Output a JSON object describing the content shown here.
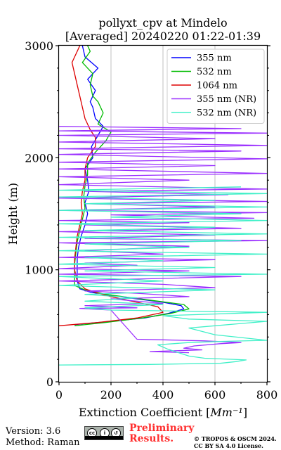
{
  "chart_data": {
    "type": "line",
    "title": [
      "pollyxt_cpv at Mindelo",
      "[Averaged] 20240220 01:22-01:39"
    ],
    "xlabel": "Extinction Coefficient [Mm⁻¹]",
    "ylabel": "Height (m)",
    "xlim": [
      0,
      800
    ],
    "ylim": [
      0,
      3000
    ],
    "xticks": [
      0,
      200,
      400,
      600,
      800
    ],
    "yticks": [
      0,
      1000,
      2000,
      3000
    ],
    "grid": "vertical",
    "legend": "top-right",
    "series": [
      {
        "name": "355 nm",
        "color": "#0000ff",
        "points": [
          [
            60,
            510
          ],
          [
            200,
            540
          ],
          [
            330,
            570
          ],
          [
            420,
            610
          ],
          [
            480,
            650
          ],
          [
            470,
            680
          ],
          [
            400,
            710
          ],
          [
            300,
            740
          ],
          [
            200,
            770
          ],
          [
            120,
            800
          ],
          [
            80,
            830
          ],
          [
            70,
            900
          ],
          [
            70,
            1000
          ],
          [
            70,
            1100
          ],
          [
            75,
            1200
          ],
          [
            85,
            1300
          ],
          [
            100,
            1400
          ],
          [
            110,
            1500
          ],
          [
            100,
            1600
          ],
          [
            115,
            1700
          ],
          [
            110,
            1800
          ],
          [
            100,
            1900
          ],
          [
            130,
            2000
          ],
          [
            125,
            2100
          ],
          [
            150,
            2200
          ],
          [
            170,
            2280
          ],
          [
            140,
            2350
          ],
          [
            130,
            2450
          ],
          [
            120,
            2500
          ],
          [
            140,
            2600
          ],
          [
            110,
            2700
          ],
          [
            150,
            2800
          ],
          [
            100,
            2900
          ],
          [
            90,
            3000
          ]
        ]
      },
      {
        "name": "532 nm",
        "color": "#00bb00",
        "points": [
          [
            60,
            500
          ],
          [
            180,
            530
          ],
          [
            320,
            570
          ],
          [
            430,
            610
          ],
          [
            500,
            650
          ],
          [
            480,
            690
          ],
          [
            380,
            720
          ],
          [
            280,
            750
          ],
          [
            180,
            780
          ],
          [
            100,
            820
          ],
          [
            60,
            860
          ],
          [
            60,
            950
          ],
          [
            60,
            1050
          ],
          [
            65,
            1150
          ],
          [
            70,
            1250
          ],
          [
            80,
            1350
          ],
          [
            90,
            1450
          ],
          [
            100,
            1550
          ],
          [
            95,
            1650
          ],
          [
            100,
            1750
          ],
          [
            110,
            1850
          ],
          [
            110,
            1950
          ],
          [
            140,
            2050
          ],
          [
            180,
            2150
          ],
          [
            200,
            2230
          ],
          [
            150,
            2300
          ],
          [
            170,
            2400
          ],
          [
            150,
            2500
          ],
          [
            130,
            2550
          ],
          [
            120,
            2650
          ],
          [
            130,
            2750
          ],
          [
            90,
            2850
          ],
          [
            120,
            2950
          ],
          [
            110,
            3000
          ]
        ]
      },
      {
        "name": "1064 nm",
        "color": "#dd0000",
        "points": [
          [
            0,
            500
          ],
          [
            150,
            530
          ],
          [
            300,
            570
          ],
          [
            400,
            620
          ],
          [
            380,
            670
          ],
          [
            320,
            700
          ],
          [
            260,
            730
          ],
          [
            200,
            760
          ],
          [
            150,
            790
          ],
          [
            100,
            830
          ],
          [
            70,
            900
          ],
          [
            60,
            1000
          ],
          [
            60,
            1100
          ],
          [
            65,
            1200
          ],
          [
            70,
            1300
          ],
          [
            80,
            1400
          ],
          [
            90,
            1500
          ],
          [
            85,
            1600
          ],
          [
            90,
            1700
          ],
          [
            100,
            1800
          ],
          [
            100,
            1900
          ],
          [
            110,
            2000
          ],
          [
            140,
            2100
          ],
          [
            140,
            2180
          ],
          [
            120,
            2250
          ],
          [
            100,
            2350
          ],
          [
            90,
            2450
          ],
          [
            80,
            2550
          ],
          [
            70,
            2650
          ],
          [
            60,
            2750
          ],
          [
            50,
            2850
          ],
          [
            70,
            2950
          ],
          [
            80,
            3000
          ]
        ]
      },
      {
        "name": "355 nm (NR)",
        "color": "#9b30ff",
        "points": [
          [
            500,
            260
          ],
          [
            350,
            270
          ],
          [
            550,
            285
          ],
          [
            480,
            300
          ],
          [
            520,
            320
          ],
          [
            620,
            340
          ],
          [
            700,
            350
          ],
          [
            560,
            365
          ],
          [
            400,
            375
          ],
          [
            300,
            380
          ],
          [
            200,
            640
          ],
          [
            80,
            655
          ],
          [
            300,
            660
          ],
          [
            100,
            680
          ],
          [
            400,
            700
          ],
          [
            200,
            740
          ],
          [
            500,
            760
          ],
          [
            300,
            790
          ],
          [
            100,
            810
          ],
          [
            600,
            840
          ],
          [
            400,
            870
          ],
          [
            0,
            900
          ],
          [
            700,
            940
          ],
          [
            0,
            960
          ],
          [
            500,
            990
          ],
          [
            0,
            1010
          ],
          [
            300,
            1040
          ],
          [
            100,
            1060
          ],
          [
            600,
            1090
          ],
          [
            0,
            1110
          ],
          [
            400,
            1140
          ],
          [
            100,
            1170
          ],
          [
            500,
            1210
          ],
          [
            0,
            1240
          ],
          [
            800,
            1260
          ],
          [
            100,
            1280
          ],
          [
            600,
            1310
          ],
          [
            0,
            1340
          ],
          [
            700,
            1370
          ],
          [
            100,
            1400
          ],
          [
            500,
            1420
          ],
          [
            0,
            1440
          ],
          [
            750,
            1460
          ],
          [
            200,
            1490
          ],
          [
            800,
            1510
          ],
          [
            0,
            1530
          ],
          [
            600,
            1560
          ],
          [
            100,
            1590
          ],
          [
            800,
            1610
          ],
          [
            0,
            1640
          ],
          [
            650,
            1670
          ],
          [
            100,
            1700
          ],
          [
            800,
            1720
          ],
          [
            0,
            1760
          ],
          [
            500,
            1800
          ],
          [
            0,
            1830
          ],
          [
            800,
            1860
          ],
          [
            0,
            1900
          ],
          [
            600,
            1930
          ],
          [
            0,
            1960
          ],
          [
            800,
            1990
          ],
          [
            0,
            2030
          ],
          [
            700,
            2060
          ],
          [
            0,
            2080
          ],
          [
            800,
            2110
          ],
          [
            0,
            2140
          ],
          [
            600,
            2170
          ],
          [
            0,
            2200
          ],
          [
            800,
            2220
          ],
          [
            0,
            2240
          ],
          [
            700,
            2260
          ],
          [
            0,
            2280
          ]
        ]
      },
      {
        "name": "532 nm (NR)",
        "color": "#40f0c8",
        "points": [
          [
            0,
            150
          ],
          [
            350,
            155
          ],
          [
            620,
            165
          ],
          [
            680,
            180
          ],
          [
            720,
            195
          ],
          [
            560,
            210
          ],
          [
            500,
            230
          ],
          [
            460,
            260
          ],
          [
            420,
            290
          ],
          [
            380,
            330
          ],
          [
            500,
            350
          ],
          [
            620,
            360
          ],
          [
            800,
            370
          ],
          [
            600,
            420
          ],
          [
            500,
            480
          ],
          [
            600,
            500
          ],
          [
            700,
            520
          ],
          [
            800,
            540
          ],
          [
            500,
            560
          ],
          [
            400,
            590
          ],
          [
            800,
            620
          ],
          [
            200,
            640
          ],
          [
            100,
            660
          ],
          [
            400,
            690
          ],
          [
            100,
            720
          ],
          [
            300,
            750
          ],
          [
            100,
            780
          ],
          [
            600,
            820
          ],
          [
            0,
            860
          ],
          [
            400,
            900
          ],
          [
            0,
            940
          ],
          [
            800,
            960
          ],
          [
            100,
            990
          ],
          [
            600,
            1020
          ],
          [
            0,
            1050
          ],
          [
            400,
            1080
          ],
          [
            100,
            1110
          ],
          [
            800,
            1140
          ],
          [
            0,
            1170
          ],
          [
            500,
            1200
          ],
          [
            100,
            1230
          ],
          [
            700,
            1260
          ],
          [
            0,
            1290
          ],
          [
            800,
            1320
          ],
          [
            100,
            1350
          ],
          [
            600,
            1380
          ],
          [
            0,
            1410
          ],
          [
            800,
            1440
          ],
          [
            200,
            1470
          ],
          [
            700,
            1500
          ],
          [
            0,
            1530
          ],
          [
            800,
            1560
          ],
          [
            100,
            1590
          ],
          [
            600,
            1620
          ],
          [
            0,
            1650
          ],
          [
            800,
            1680
          ],
          [
            0,
            1710
          ],
          [
            700,
            1740
          ]
        ]
      }
    ]
  },
  "footer": {
    "version": "Version: 3.6",
    "method": "Method: Raman",
    "preliminary_line1": "Preliminary",
    "preliminary_line2": "Results.",
    "copyright_line1": "© TROPOS & OSCM 2024.",
    "copyright_line2": "CC BY SA 4.0 License.",
    "badge_left": "cc",
    "badge_mid": "i",
    "badge_right": "↺",
    "badge_text": "BY SA"
  }
}
